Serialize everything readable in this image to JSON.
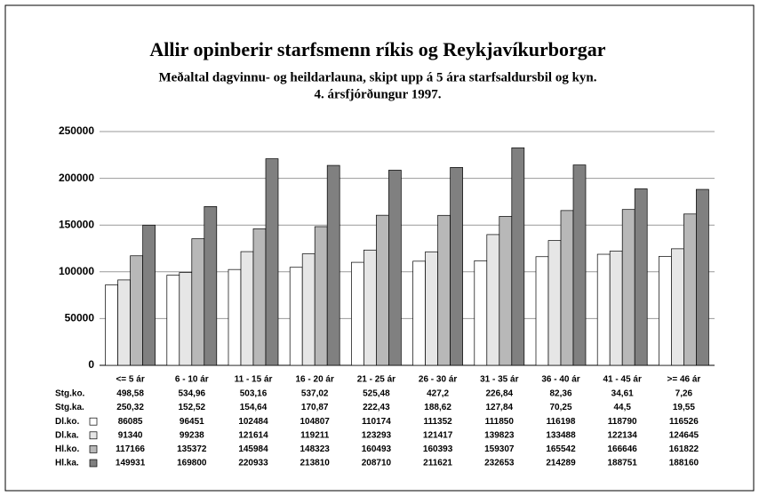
{
  "chart_data": {
    "type": "bar",
    "title": "Allir opinberir starfsmenn ríkis og Reykjavíkurborgar",
    "subtitle": [
      "Meðaltal dagvinnu- og heildarlauna, skipt upp á 5 ára starfsaldursbil og kyn.",
      "4. ársfjórðungur 1997."
    ],
    "categories": [
      "<= 5 ár",
      "6 - 10 ár",
      "11 - 15 ár",
      "16 - 20 ár",
      "21 - 25 ár",
      "26 - 30 ár",
      "31 - 35 ár",
      "36 - 40 ár",
      "41 - 45 ár",
      ">= 46 ár"
    ],
    "table_rows": [
      {
        "name": "Stg.ko.",
        "values": [
          498.58,
          534.96,
          503.16,
          537.02,
          525.48,
          427.2,
          226.84,
          82.36,
          34.61,
          7.26
        ],
        "value_labels": [
          "498,58",
          "534,96",
          "503,16",
          "537,02",
          "525,48",
          "427,2",
          "226,84",
          "82,36",
          "34,61",
          "7,26"
        ]
      },
      {
        "name": "Stg.ka.",
        "values": [
          250.32,
          152.52,
          154.64,
          170.87,
          222.43,
          188.62,
          127.84,
          70.25,
          44.5,
          19.55
        ],
        "value_labels": [
          "250,32",
          "152,52",
          "154,64",
          "170,87",
          "222,43",
          "188,62",
          "127,84",
          "70,25",
          "44,5",
          "19,55"
        ]
      }
    ],
    "series": [
      {
        "name": "Dl.ko.",
        "color": "#ffffff",
        "values": [
          86085,
          96451,
          102484,
          104807,
          110174,
          111352,
          111850,
          116198,
          118790,
          116526
        ]
      },
      {
        "name": "Dl.ka.",
        "color": "#e6e6e6",
        "values": [
          91340,
          99238,
          121614,
          119211,
          123293,
          121417,
          139823,
          133488,
          122134,
          124645
        ]
      },
      {
        "name": "Hl.ko.",
        "color": "#b8b8b8",
        "values": [
          117166,
          135372,
          145984,
          148323,
          160493,
          160393,
          159307,
          165542,
          166646,
          161822
        ]
      },
      {
        "name": "Hl.ka.",
        "color": "#808080",
        "values": [
          149931,
          169800,
          220933,
          213810,
          208710,
          211621,
          232653,
          214289,
          188751,
          188160
        ]
      }
    ],
    "ylim": [
      0,
      250000
    ],
    "yticks": [
      0,
      50000,
      100000,
      150000,
      200000,
      250000
    ],
    "grid": true
  }
}
